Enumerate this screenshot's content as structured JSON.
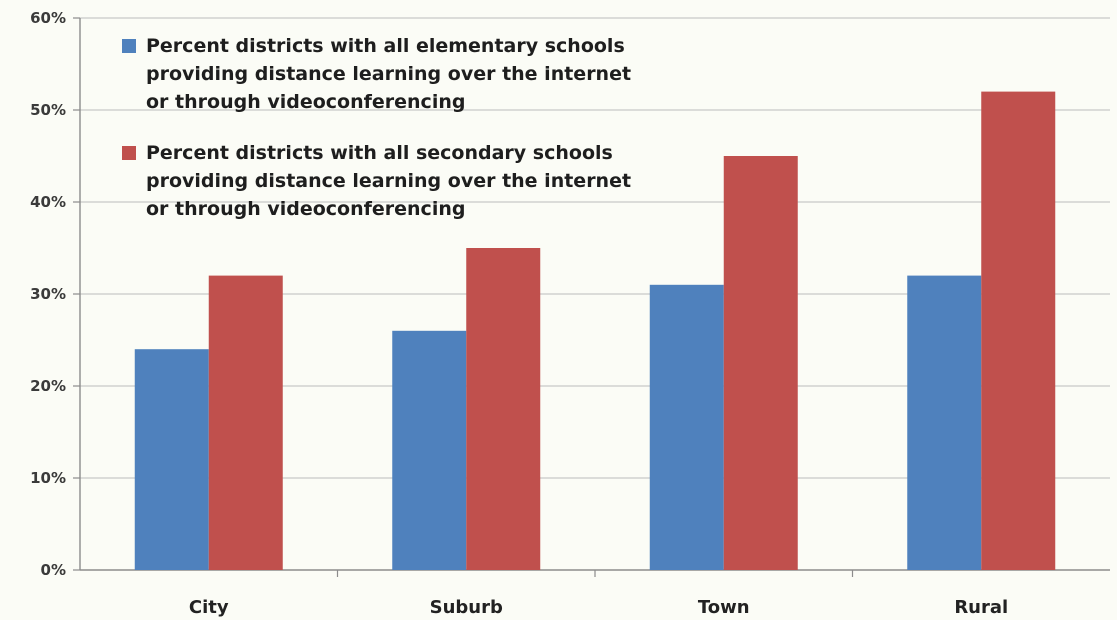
{
  "chart_data": {
    "type": "bar",
    "categories": [
      "City",
      "Suburb",
      "Town",
      "Rural"
    ],
    "series": [
      {
        "name": "Percent districts with all elementary schools providing distance learning over the internet or through videoconferencing",
        "name_lines": [
          "Percent districts with all elementary schools",
          "providing distance learning over the internet",
          "or through videoconferencing"
        ],
        "color": "#4f81bd",
        "values": [
          24,
          26,
          31,
          32
        ]
      },
      {
        "name": "Percent districts with all secondary schools providing distance learning over the internet or through videoconferencing",
        "name_lines": [
          "Percent districts with all secondary schools",
          "providing distance learning over the internet",
          "or through videoconferencing"
        ],
        "color": "#c0504d",
        "values": [
          32,
          35,
          45,
          52
        ]
      }
    ],
    "yticks": [
      "0%",
      "10%",
      "20%",
      "30%",
      "40%",
      "50%",
      "60%"
    ],
    "ylim": [
      0,
      60
    ],
    "grid": true,
    "legend_position": "top-left"
  }
}
